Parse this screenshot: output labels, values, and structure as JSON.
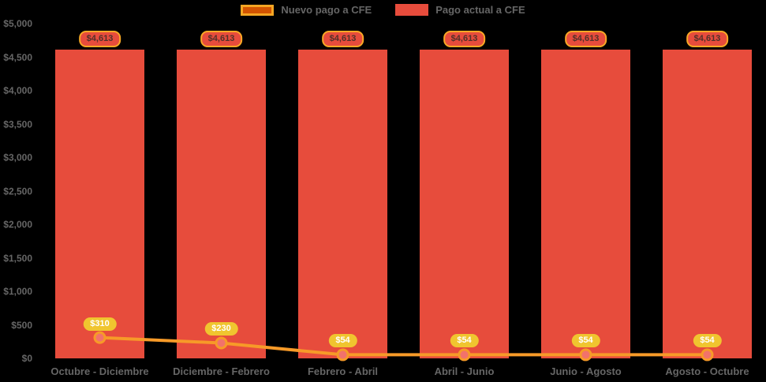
{
  "legend": {
    "nuevo_label": "Nuevo pago a CFE",
    "actual_label": "Pago actual a CFE"
  },
  "colors": {
    "background": "#000000",
    "bar": "#e74c3c",
    "line": "#f79a28",
    "marker_fill": "#f2726b",
    "badge_border": "#f9a825",
    "value_pill": "#f0c52f",
    "axis_text": "#666666"
  },
  "chart_data": {
    "type": "bar",
    "categories": [
      "Octubre - Diciembre",
      "Diciembre - Febrero",
      "Febrero - Abril",
      "Abril - Junio",
      "Junio - Agosto",
      "Agosto - Octubre"
    ],
    "series": [
      {
        "name": "Pago actual a CFE",
        "type": "bar",
        "color": "#e74c3c",
        "values": [
          4613,
          4613,
          4613,
          4613,
          4613,
          4613
        ],
        "data_labels": [
          "$4,613",
          "$4,613",
          "$4,613",
          "$4,613",
          "$4,613",
          "$4,613"
        ]
      },
      {
        "name": "Nuevo pago a CFE",
        "type": "line",
        "color": "#f79a28",
        "values": [
          310,
          230,
          54,
          54,
          54,
          54
        ],
        "data_labels": [
          "$310",
          "$230",
          "$54",
          "$54",
          "$54",
          "$54"
        ]
      }
    ],
    "xlabel": "",
    "ylabel": "",
    "ylim": [
      0,
      5000
    ],
    "ytick_step": 500,
    "ytick_labels": [
      "$0",
      "$500",
      "$1,000",
      "$1,500",
      "$2,000",
      "$2,500",
      "$3,000",
      "$3,500",
      "$4,000",
      "$4,500",
      "$5,000"
    ],
    "grid": false,
    "legend_position": "top"
  }
}
